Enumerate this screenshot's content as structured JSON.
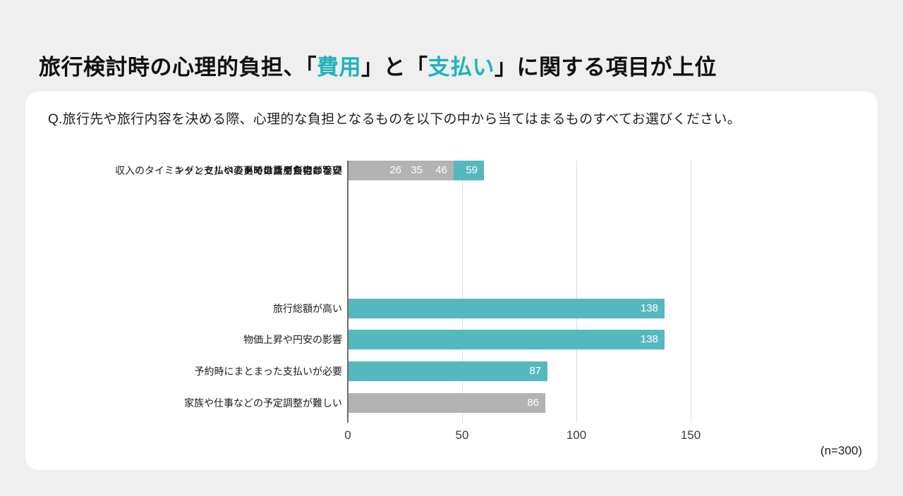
{
  "theme": {
    "page_background": "#efefef",
    "card_background": "#ffffff",
    "accent": "#1fb3bc",
    "title_color": "#101010"
  },
  "title": {
    "parts": [
      {
        "text": "旅行検討時の心理的負担、「",
        "accent": false
      },
      {
        "text": "費用",
        "accent": true
      },
      {
        "text": "」と「",
        "accent": false
      },
      {
        "text": "支払い",
        "accent": true
      },
      {
        "text": "」に関する項目が上位",
        "accent": false
      }
    ]
  },
  "question": "Q.旅行先や旅行内容を決める際、心理的な負担となるものを以下の中から当てはまるものすべてお選びください。",
  "note": "(n=300)",
  "chart_data": {
    "type": "bar",
    "orientation": "horizontal",
    "title": "旅行検討時の心理的負担、「費用」と「支払い」に関する項目が上位",
    "categories": [
      "旅行総額が高い",
      "物価上昇や円安の影響",
      "予約時にまとまった支払いが必要",
      "家族や仕事などの予定調整が難しい",
      "収入のタイミングと支払いのタイミングが合わない",
      "ペットの世話や自宅の管理",
      "キャンセルや変更時の費用負担が不安",
      "あてはまるものはない"
    ],
    "values": [
      138,
      138,
      87,
      86,
      59,
      46,
      35,
      26
    ],
    "highlighted": [
      true,
      true,
      true,
      false,
      true,
      false,
      false,
      false
    ],
    "colors": {
      "highlight": "#55b8bf",
      "default": "#b3b3b3"
    },
    "xlim": [
      0,
      150
    ],
    "xticks": [
      0,
      50,
      100,
      150
    ],
    "grid": true,
    "value_labels": "inside-end",
    "sample_size": 300
  }
}
